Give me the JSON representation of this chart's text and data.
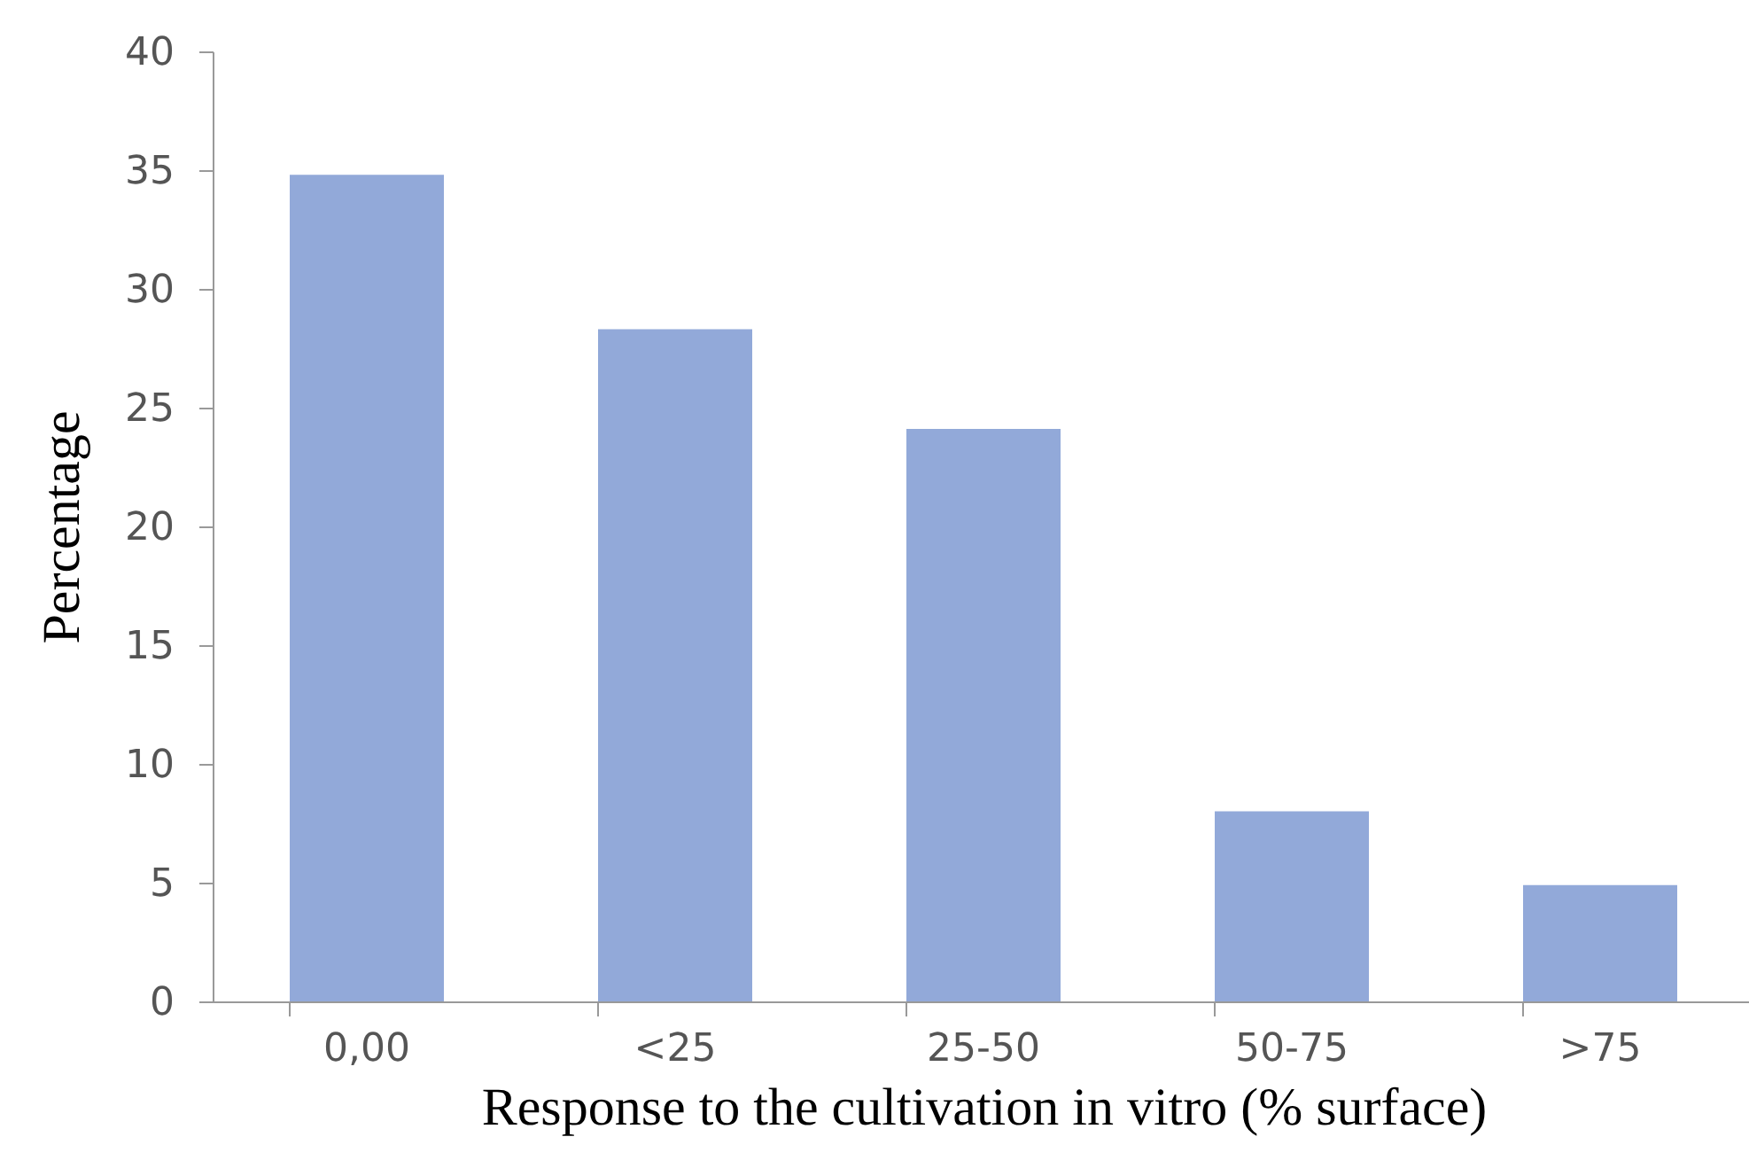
{
  "chart_data": {
    "type": "bar",
    "xlabel": "Response to the cultivation in vitro (% surface)",
    "ylabel": "Percentage",
    "categories": [
      "0,00",
      "<25",
      "25-50",
      "50-75",
      ">75"
    ],
    "values": [
      34.8,
      28.3,
      24.1,
      8.0,
      4.9
    ],
    "color": "#92a9d9",
    "ylim": [
      0,
      40
    ],
    "yticks": [
      0,
      5,
      10,
      15,
      20,
      25,
      30,
      35,
      40
    ],
    "grid": false
  }
}
